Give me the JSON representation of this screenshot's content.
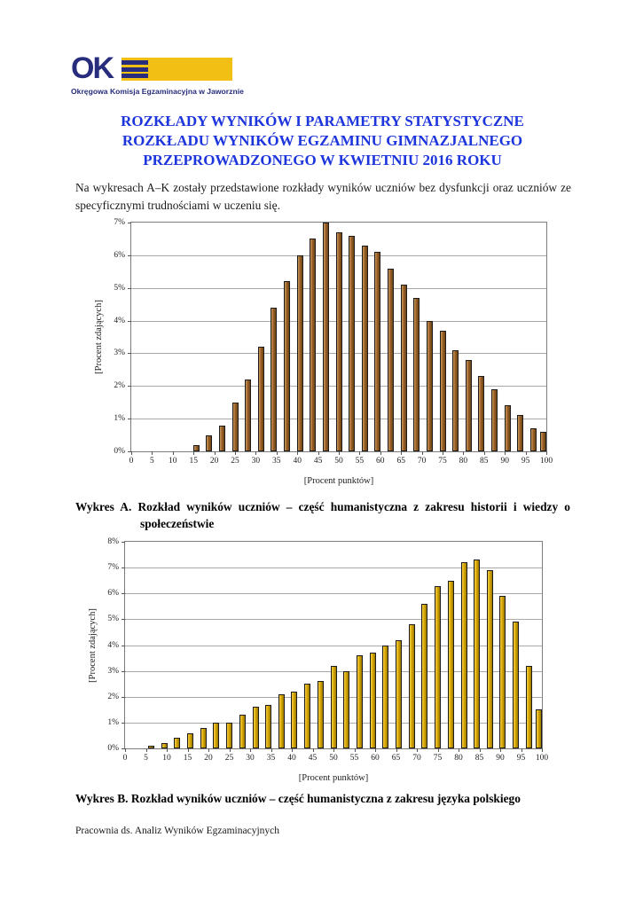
{
  "page": {
    "logo": {
      "acronym": "OK",
      "subtitle": "Okręgowa Komisja Egzaminacyjna w Jaworznie",
      "navy": "#272c7c",
      "yellow": "#f2c014"
    },
    "title_lines": [
      "ROZKŁADY WYNIKÓW I PARAMETRY STATYSTYCZNE",
      "ROZKŁADU WYNIKÓW EGZAMINU GIMNAZJALNEGO",
      "PRZEPROWADZONEGO W KWIETNIU 2016 ROKU"
    ],
    "title_color": "#1d35dc",
    "intro": "Na wykresach A–K zostały przedstawione rozkłady wyników uczniów bez dysfunkcji oraz uczniów ze specyficznymi trudnościami w uczeniu się.",
    "caption_a": {
      "label": "Wykres A.",
      "text": "Rozkład wyników uczniów – część humanistyczna z zakresu historii i wiedzy o społeczeństwie"
    },
    "caption_b": {
      "label": "Wykres B.",
      "text": "Rozkład wyników uczniów – część humanistyczna z zakresu języka polskiego"
    },
    "footer": "Pracownia ds. Analiz Wyników Egzaminacyjnych"
  },
  "chart_data": [
    {
      "id": "chart-a",
      "type": "bar",
      "title": "",
      "xlabel": "[Procent punktów]",
      "ylabel": "[Procent zdających]",
      "xlim": [
        0,
        100
      ],
      "ylim": [
        0,
        7
      ],
      "y_tick_step": 1,
      "x_ticks": [
        0,
        5,
        10,
        15,
        20,
        25,
        30,
        35,
        40,
        45,
        50,
        55,
        60,
        65,
        70,
        75,
        80,
        85,
        90,
        95,
        100
      ],
      "grid": true,
      "legend": false,
      "bar_color": "#9c6226",
      "bar_color_light": "#c89a62",
      "bar_color_dark": "#6e4318",
      "x": [
        15.6,
        18.8,
        21.9,
        25.0,
        28.1,
        31.3,
        34.4,
        37.5,
        40.6,
        43.8,
        46.9,
        50.0,
        53.1,
        56.3,
        59.4,
        62.5,
        65.6,
        68.8,
        71.9,
        75.0,
        78.1,
        81.3,
        84.4,
        87.5,
        90.6,
        93.8,
        96.9,
        100.0
      ],
      "values": [
        0.2,
        0.5,
        0.8,
        1.5,
        2.2,
        3.2,
        4.4,
        5.2,
        6.0,
        6.5,
        7.0,
        6.7,
        6.6,
        6.3,
        6.1,
        5.6,
        5.1,
        4.7,
        4.0,
        3.7,
        3.1,
        2.8,
        2.3,
        1.9,
        1.4,
        1.1,
        0.7,
        0.6
      ]
    },
    {
      "id": "chart-b",
      "type": "bar",
      "title": "",
      "xlabel": "[Procent punktów]",
      "ylabel": "[Procent zdających]",
      "xlim": [
        0,
        100
      ],
      "ylim": [
        0,
        8
      ],
      "y_tick_step": 1,
      "x_ticks": [
        0,
        5,
        10,
        15,
        20,
        25,
        30,
        35,
        40,
        45,
        50,
        55,
        60,
        65,
        70,
        75,
        80,
        85,
        90,
        95,
        100
      ],
      "grid": true,
      "legend": false,
      "bar_color": "#d9a802",
      "bar_color_light": "#f3cf4e",
      "bar_color_dark": "#9c7a00",
      "x": [
        6.3,
        9.4,
        12.5,
        15.6,
        18.8,
        21.9,
        25.0,
        28.1,
        31.3,
        34.4,
        37.5,
        40.6,
        43.8,
        46.9,
        50.0,
        53.1,
        56.3,
        59.4,
        62.5,
        65.6,
        68.8,
        71.9,
        75.0,
        78.1,
        81.3,
        84.4,
        87.5,
        90.6,
        93.8,
        96.9,
        100.0
      ],
      "values": [
        0.1,
        0.2,
        0.4,
        0.6,
        0.8,
        1.0,
        1.0,
        1.3,
        1.6,
        1.7,
        2.1,
        2.2,
        2.5,
        2.6,
        3.2,
        3.0,
        3.6,
        3.7,
        4.0,
        4.2,
        4.8,
        5.6,
        6.3,
        6.5,
        7.2,
        7.3,
        6.9,
        5.9,
        4.9,
        3.2,
        1.5
      ]
    }
  ]
}
